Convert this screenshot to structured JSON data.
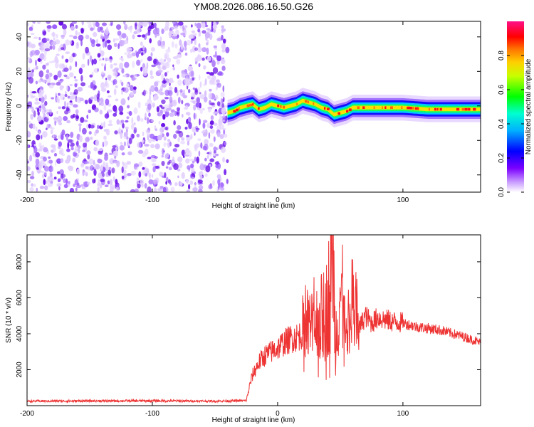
{
  "title": "YM08.2026.086.16.50.G26",
  "chart_data": [
    {
      "type": "heatmap",
      "xlabel": "Height of straight line (km)",
      "ylabel": "Frequency (Hz)",
      "xlim": [
        -200,
        162
      ],
      "ylim": [
        -50,
        49
      ],
      "xticks": [
        -200,
        -100,
        0,
        100
      ],
      "yticks": [
        -40,
        -20,
        0,
        20,
        40
      ],
      "noise_region_x": [
        -200,
        -40
      ],
      "signal_ridge": {
        "x": [
          -40,
          -35,
          -30,
          -25,
          -20,
          -15,
          -10,
          -5,
          0,
          5,
          10,
          15,
          20,
          25,
          30,
          35,
          40,
          45,
          50,
          55,
          60,
          70,
          80,
          100,
          120,
          140,
          162
        ],
        "y": [
          -4,
          -3,
          -1,
          0,
          1,
          -2,
          -1,
          1,
          0,
          -1,
          0,
          1,
          3,
          2,
          1,
          -1,
          -2,
          -5,
          -4,
          -3,
          -1,
          -1,
          -1,
          -1,
          -2,
          -2,
          -2
        ]
      },
      "colorbar": {
        "label": "Normalized spectral amplitude",
        "range": [
          0,
          1
        ],
        "ticks": [
          "0.0",
          "0.2",
          "0.4",
          "0.6",
          "0.8"
        ]
      }
    },
    {
      "type": "line",
      "xlabel": "Height of straight line (km)",
      "ylabel": "SNR (10 * v/v)",
      "xlim": [
        -200,
        162
      ],
      "ylim": [
        0,
        9500
      ],
      "xticks": [
        -200,
        -100,
        0,
        100
      ],
      "yticks": [
        2000,
        4000,
        6000,
        8000
      ],
      "color": "#ee3333",
      "series": [
        {
          "name": "SNR",
          "x": [
            -200,
            -150,
            -100,
            -50,
            -25,
            -22,
            -20,
            -15,
            -10,
            -5,
            0,
            5,
            10,
            15,
            20,
            25,
            30,
            35,
            40,
            44,
            46,
            50,
            55,
            60,
            65,
            70,
            75,
            80,
            90,
            100,
            110,
            120,
            130,
            140,
            150,
            162
          ],
          "y": [
            250,
            260,
            270,
            250,
            280,
            1200,
            1700,
            2400,
            2800,
            3000,
            3200,
            3500,
            3700,
            3800,
            4000,
            4200,
            4500,
            4800,
            5500,
            9500,
            3500,
            6500,
            3000,
            5800,
            4300,
            5000,
            4600,
            4900,
            4700,
            4600,
            4400,
            4300,
            4200,
            4000,
            3800,
            3500
          ]
        }
      ]
    }
  ]
}
